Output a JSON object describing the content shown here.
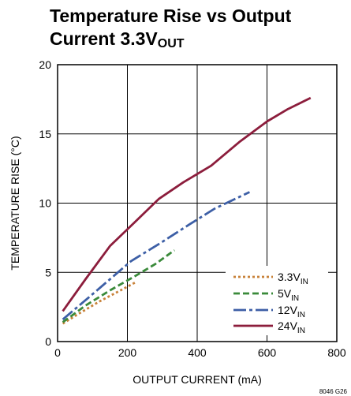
{
  "chart_data": {
    "type": "line",
    "title": "Temperature Rise vs Output Current 3.3V",
    "title_lines": [
      "Temperature Rise vs Output",
      "Current 3.3V"
    ],
    "title_subscript": "OUT",
    "xlabel": "OUTPUT CURRENT (mA)",
    "ylabel": "TEMPERATURE RISE (°C)",
    "xlim": [
      0,
      800
    ],
    "ylim": [
      0,
      20
    ],
    "xticks": [
      0,
      200,
      400,
      600,
      800
    ],
    "yticks": [
      0,
      5,
      10,
      15,
      20
    ],
    "xtick_labels": [
      "0",
      "200",
      "400",
      "600",
      "800"
    ],
    "ytick_labels": [
      "0",
      "5",
      "10",
      "15",
      "20"
    ],
    "grid": true,
    "legend_position": "bottom-right",
    "figure_code": "8046 G26",
    "series": [
      {
        "name": "3.3V",
        "name_sub": "IN",
        "color": "#c8823a",
        "dash": "3,3",
        "x": [
          15,
          60,
          120,
          180,
          225
        ],
        "y": [
          1.3,
          2.0,
          2.9,
          3.7,
          4.3
        ]
      },
      {
        "name": "5V",
        "name_sub": "IN",
        "color": "#3a8a3a",
        "dash": "8,4",
        "x": [
          15,
          80,
          150,
          220,
          280,
          335
        ],
        "y": [
          1.4,
          2.6,
          3.7,
          4.7,
          5.6,
          6.6
        ]
      },
      {
        "name": "12V",
        "name_sub": "IN",
        "color": "#3d5fa6",
        "dash": "16,4,4,4",
        "x": [
          15,
          90,
          150,
          210,
          300,
          380,
          450,
          550
        ],
        "y": [
          1.6,
          3.2,
          4.5,
          5.8,
          7.2,
          8.5,
          9.6,
          10.8
        ]
      },
      {
        "name": "24V",
        "name_sub": "IN",
        "color": "#8c1d3c",
        "dash": "",
        "x": [
          15,
          80,
          150,
          220,
          290,
          360,
          440,
          520,
          600,
          660,
          725
        ],
        "y": [
          2.2,
          4.5,
          6.9,
          8.6,
          10.3,
          11.5,
          12.7,
          14.4,
          15.9,
          16.8,
          17.6
        ]
      }
    ]
  }
}
